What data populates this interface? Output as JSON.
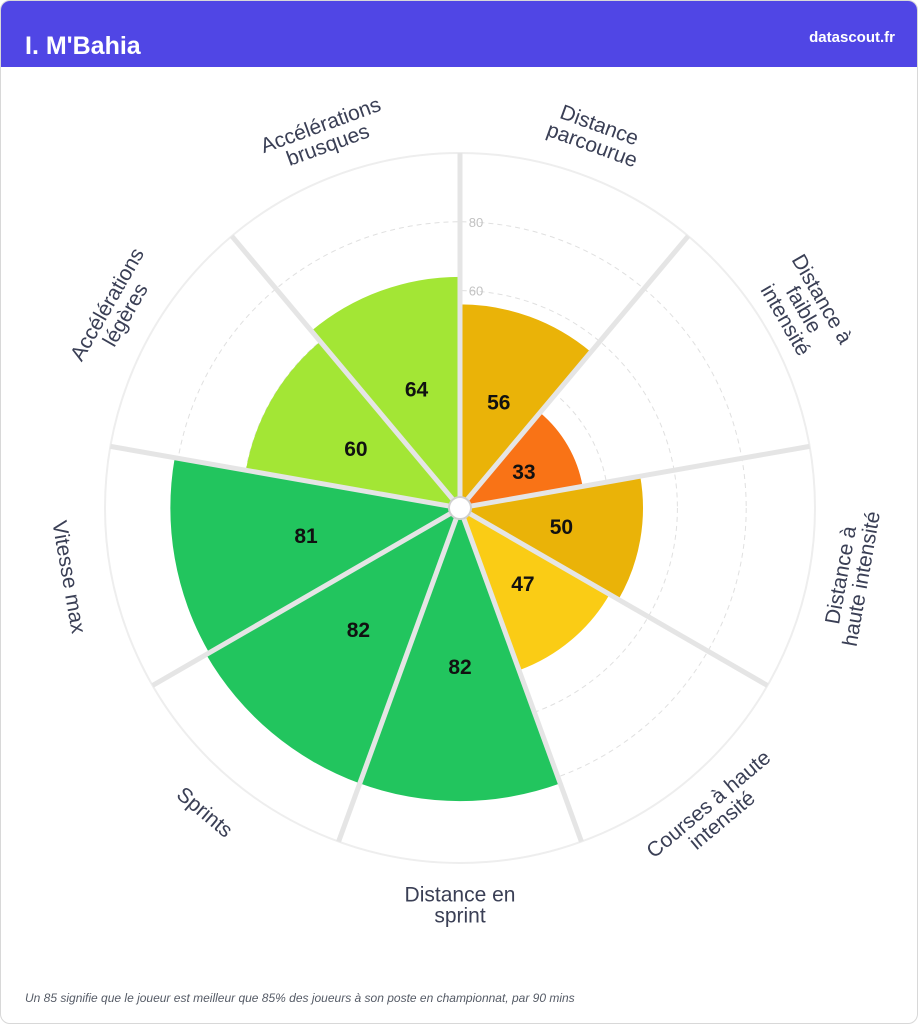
{
  "header": {
    "player_name": "I. M'Bahia",
    "brand": "datascout.fr"
  },
  "footnote": "Un 85 signifie que le joueur est meilleur que 85% des joueurs à son poste en championnat, par 90 mins",
  "chart_data": {
    "type": "polar-bar",
    "rlim": [
      0,
      100
    ],
    "ring_labels": [
      "60",
      "80"
    ],
    "categories": [
      [
        "Distance",
        "parcourue"
      ],
      [
        "Distance à",
        "faible",
        "intensité"
      ],
      [
        "Distance à",
        "haute intensité"
      ],
      [
        "Courses à haute",
        "intensité"
      ],
      [
        "Distance en",
        "sprint"
      ],
      [
        "Sprints"
      ],
      [
        "Vitesse max"
      ],
      [
        "Accélérations",
        "légères"
      ],
      [
        "Accélérations",
        "brusques"
      ]
    ],
    "values": [
      56,
      33,
      50,
      47,
      82,
      82,
      81,
      60,
      64
    ],
    "color_scale": {
      "green": "#22c55e",
      "light_green": "#a3e635",
      "yellow": "#facc15",
      "amber": "#eab308",
      "orange": "#f97316"
    }
  }
}
